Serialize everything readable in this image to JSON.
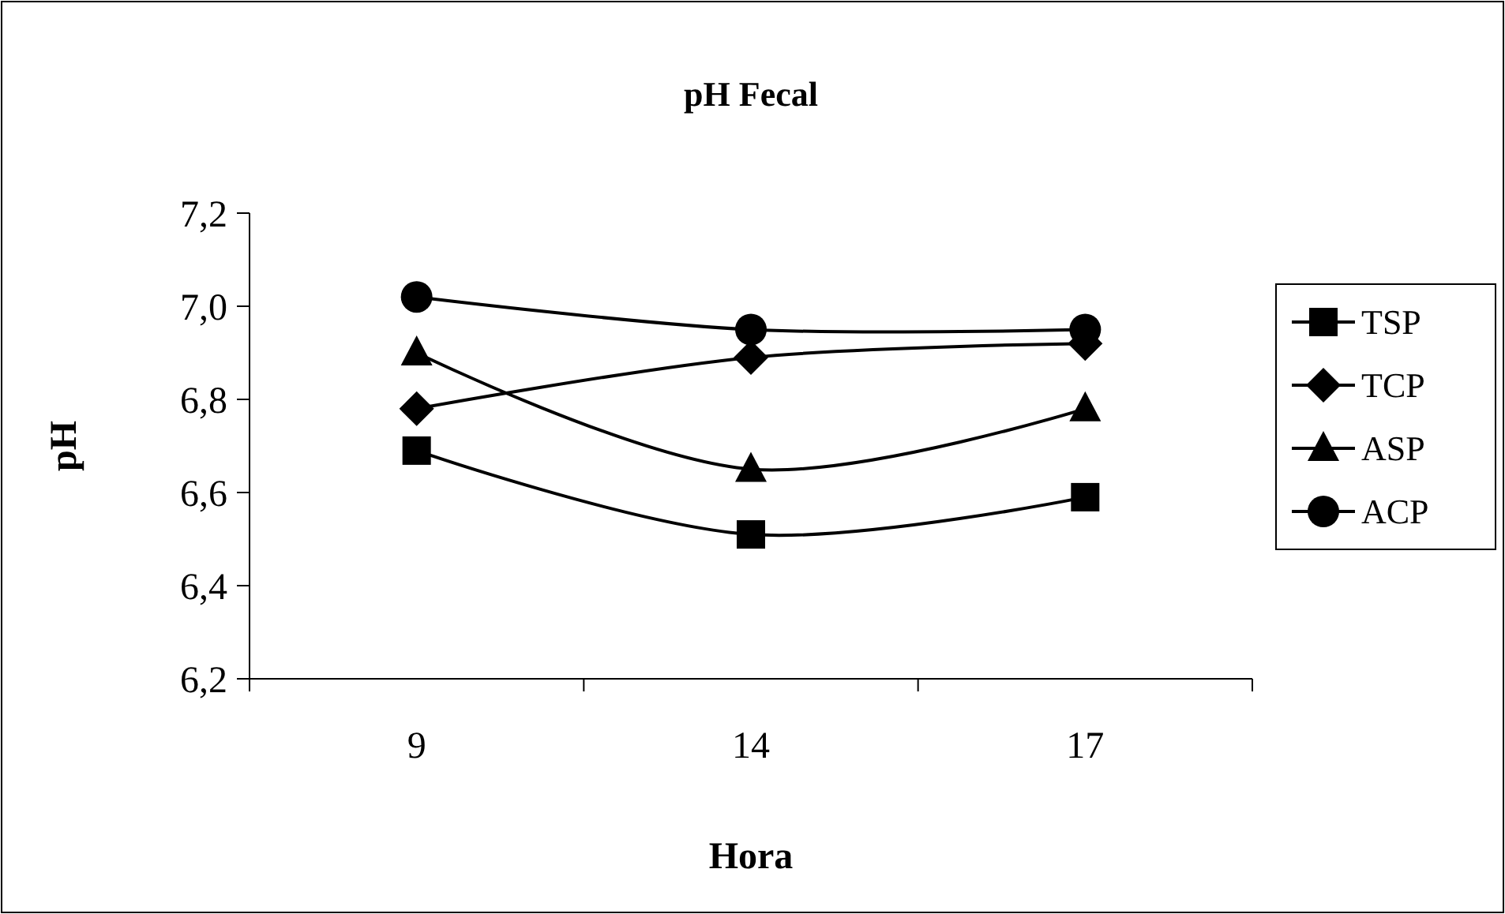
{
  "chart_data": {
    "type": "line",
    "title": "pH Fecal",
    "xlabel": "Hora",
    "ylabel": "pH",
    "categories": [
      "9",
      "14",
      "17"
    ],
    "series": [
      {
        "name": "TSP",
        "color": "#000000",
        "marker": "square",
        "values": [
          6.69,
          6.51,
          6.59
        ]
      },
      {
        "name": "TCP",
        "color": "#000000",
        "marker": "diamond",
        "values": [
          6.78,
          6.89,
          6.92
        ]
      },
      {
        "name": "ASP",
        "color": "#000000",
        "marker": "triangle",
        "values": [
          6.9,
          6.65,
          6.78
        ]
      },
      {
        "name": "ACP",
        "color": "#000000",
        "marker": "circle",
        "values": [
          7.02,
          6.95,
          6.95
        ]
      }
    ],
    "ylim": [
      6.2,
      7.2
    ],
    "yticks": [
      {
        "value": 6.2,
        "label": "6,2"
      },
      {
        "value": 6.4,
        "label": "6,4"
      },
      {
        "value": 6.6,
        "label": "6,6"
      },
      {
        "value": 6.8,
        "label": "6,8"
      },
      {
        "value": 7.0,
        "label": "7,0"
      },
      {
        "value": 7.2,
        "label": "7,2"
      }
    ],
    "grid": false,
    "legend": "right",
    "line_style": "solid"
  }
}
